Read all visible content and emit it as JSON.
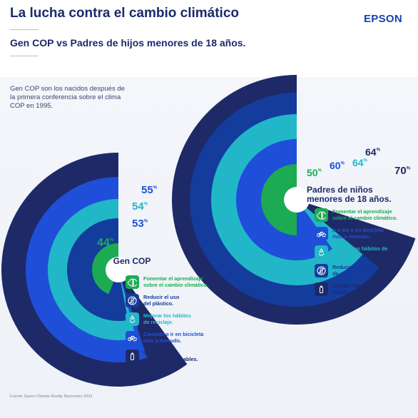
{
  "header": {
    "title": "La lucha contra el cambio climático",
    "subtitle": "Gen COP vs Padres de hijos menores de 18 años.",
    "logo": "EPSON"
  },
  "note": "Gen COP son los nacidos después de la primera conferencia sobre el clima COP en 1995.",
  "source": "Fuente: Epson Climate Reality Barometer 2023",
  "colors": {
    "navy": "#1e2a68",
    "blue": "#1f4fd8",
    "teal": "#21b7c8",
    "dark_blue": "#143c9c",
    "green": "#1cab53"
  },
  "chart_data": [
    {
      "type": "radial-bar",
      "title": "Gen COP",
      "unit": "%",
      "series": [
        {
          "name": "Fomentar el aprendizaje sobre el cambio climático.",
          "value": 44,
          "color": "#1cab53"
        },
        {
          "name": "Reducir el uso del plástico.",
          "value": 53,
          "color": "#143c9c"
        },
        {
          "name": "Mejorar los hábitos de reciclaje.",
          "value": 54,
          "color": "#21b7c8"
        },
        {
          "name": "Caminar o ir en bicicleta más a menudo.",
          "value": 55,
          "color": "#1f4fd8"
        },
        {
          "name": "Utilizar más artículos reutilizables.",
          "value": 60,
          "color": "#1e2a68"
        }
      ]
    },
    {
      "type": "radial-bar",
      "title": "Padres de niños menores de 18 años.",
      "unit": "%",
      "series": [
        {
          "name": "Fomentar el aprendizaje sobre el cambio climático.",
          "value": 50,
          "color": "#1cab53"
        },
        {
          "name": "Ir a pie o en bicicleta más a menudo.",
          "value": 60,
          "color": "#1f4fd8"
        },
        {
          "name": "Mejorar los hábitos de reciclaje.",
          "value": 64,
          "color": "#21b7c8"
        },
        {
          "name": "Reducir el uso de plásticos.",
          "value": 64,
          "color": "#143c9c"
        },
        {
          "name": "Utilizar más artículos reutilizables.",
          "value": 70,
          "color": "#1e2a68"
        }
      ]
    }
  ],
  "legend_left": [
    {
      "label": "Fomentar el aprendizaje\nsobre el cambio climático.",
      "icon": "brain-icon",
      "color": "#1cab53"
    },
    {
      "label": "Reducir el uso\ndel plástico.",
      "icon": "no-plastic-icon",
      "color": "#143c9c"
    },
    {
      "label": "Mejorar los hábitos\nde reciclaje.",
      "icon": "recycle-icon",
      "color": "#21b7c8"
    },
    {
      "label": "Caminar o ir en bicicleta\nmás a menudo.",
      "icon": "bicycle-icon",
      "color": "#1f4fd8"
    },
    {
      "label": "Utilizar más\nartículos reutilizables.",
      "icon": "reusable-bottle-icon",
      "color": "#1e2a68"
    }
  ],
  "legend_right": [
    {
      "label": "Fomentar el aprendizaje\nsobre el cambio climático.",
      "icon": "brain-icon",
      "color": "#1cab53"
    },
    {
      "label": "Ir a pie o en bicicleta\nmás a menudo.",
      "icon": "bicycle-icon",
      "color": "#1f4fd8"
    },
    {
      "label": "Mejorar los hábitos de\nreciclaje.",
      "icon": "recycle-icon",
      "color": "#21b7c8"
    },
    {
      "label": "Reducir el uso\nde plásticos.",
      "icon": "no-plastic-icon",
      "color": "#143c9c"
    },
    {
      "label": "Utilizar más artículos\nreutilizables.",
      "icon": "reusable-bottle-icon",
      "color": "#1e2a68"
    }
  ]
}
